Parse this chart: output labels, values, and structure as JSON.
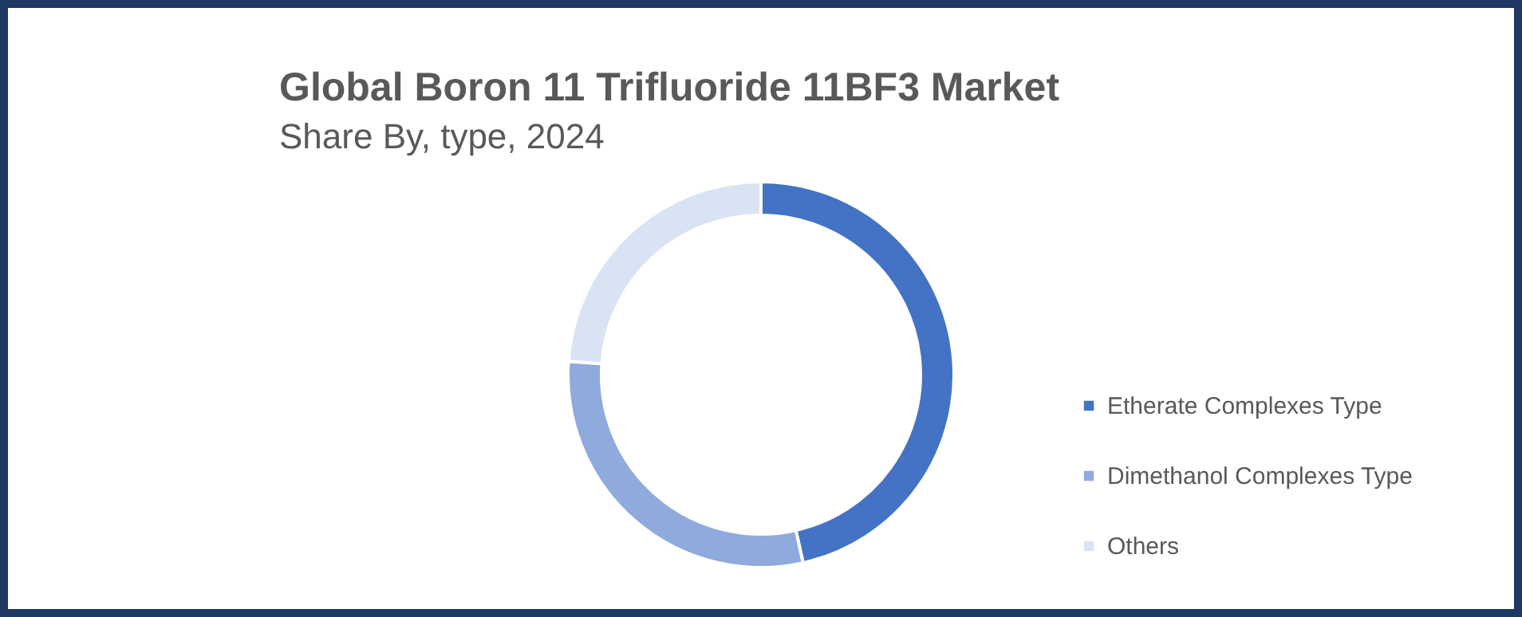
{
  "chart_data": {
    "type": "donut",
    "title": "Global Boron 11 Trifluoride 11BF3 Market",
    "subtitle": "Share By, type, 2024",
    "categories": [
      "Etherate Complexes Type",
      "Dimethanol Complexes Type",
      "Others"
    ],
    "values": [
      46.5,
      29.6,
      23.9
    ],
    "colors": [
      "#4472c4",
      "#8faadc",
      "#dae3f3"
    ],
    "legend": "right"
  }
}
